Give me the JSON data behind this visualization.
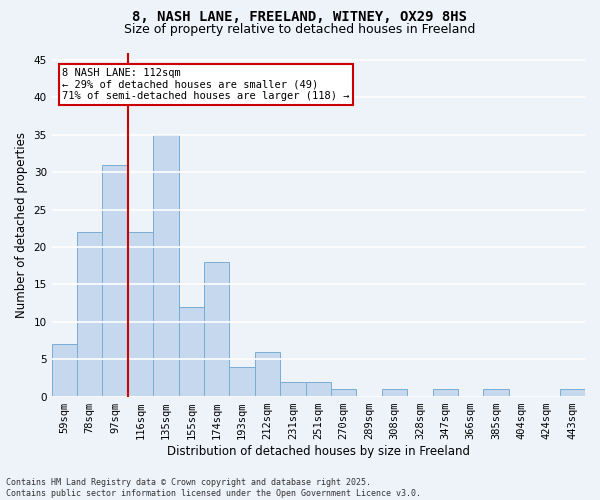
{
  "title": "8, NASH LANE, FREELAND, WITNEY, OX29 8HS",
  "subtitle": "Size of property relative to detached houses in Freeland",
  "xlabel": "Distribution of detached houses by size in Freeland",
  "ylabel": "Number of detached properties",
  "categories": [
    "59sqm",
    "78sqm",
    "97sqm",
    "116sqm",
    "135sqm",
    "155sqm",
    "174sqm",
    "193sqm",
    "212sqm",
    "231sqm",
    "251sqm",
    "270sqm",
    "289sqm",
    "308sqm",
    "328sqm",
    "347sqm",
    "366sqm",
    "385sqm",
    "404sqm",
    "424sqm",
    "443sqm"
  ],
  "values": [
    7,
    22,
    31,
    22,
    35,
    12,
    18,
    4,
    6,
    2,
    2,
    1,
    0,
    1,
    0,
    1,
    0,
    1,
    0,
    0,
    1
  ],
  "bar_color": "#c5d8ed",
  "bar_edge_color": "#7aadd4",
  "background_color": "#eef2f9",
  "grid_color": "#ffffff",
  "ylim": [
    0,
    46
  ],
  "yticks": [
    0,
    5,
    10,
    15,
    20,
    25,
    30,
    35,
    40,
    45
  ],
  "vline_x_index": 3,
  "vline_color": "#cc0000",
  "annotation_text": "8 NASH LANE: 112sqm\n← 29% of detached houses are smaller (49)\n71% of semi-detached houses are larger (118) →",
  "annotation_box_color": "#ffffff",
  "annotation_box_edge": "#cc0000",
  "footer": "Contains HM Land Registry data © Crown copyright and database right 2025.\nContains public sector information licensed under the Open Government Licence v3.0.",
  "title_fontsize": 10,
  "subtitle_fontsize": 9,
  "axis_label_fontsize": 8.5,
  "tick_fontsize": 7.5,
  "annotation_fontsize": 7.5,
  "footer_fontsize": 6
}
